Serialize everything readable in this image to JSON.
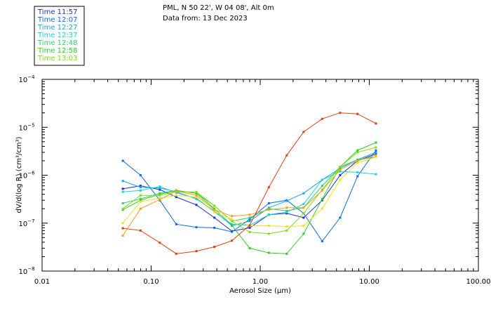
{
  "chart_data": {
    "type": "line",
    "title_lines": [
      "PML, N 50 22', W 04 08', Alt 0m",
      "Data from: 13 Dec 2023"
    ],
    "xlabel": "Aerosol Size (µm)",
    "ylabel": "dV/d(log R) (cm³/cm³)",
    "x_scale": "log",
    "y_scale": "log",
    "xlim": [
      0.01,
      100
    ],
    "ylim": [
      1e-08,
      0.0001
    ],
    "x_ticks": [
      {
        "value": 0.01,
        "label": "0.01"
      },
      {
        "value": 0.1,
        "label": "0.10"
      },
      {
        "value": 1,
        "label": "1.00"
      },
      {
        "value": 10,
        "label": "10.00"
      },
      {
        "value": 100,
        "label": "100.00"
      }
    ],
    "y_ticks": [
      {
        "value": 1e-08,
        "base": "10",
        "exp": "−8"
      },
      {
        "value": 1e-07,
        "base": "10",
        "exp": "−7"
      },
      {
        "value": 1e-06,
        "base": "10",
        "exp": "−6"
      },
      {
        "value": 1e-05,
        "base": "10",
        "exp": "−5"
      },
      {
        "value": 0.0001,
        "base": "10",
        "exp": "−4"
      }
    ],
    "x": [
      0.055,
      0.08,
      0.12,
      0.17,
      0.26,
      0.38,
      0.55,
      0.8,
      1.2,
      1.75,
      2.5,
      3.7,
      5.4,
      7.8,
      11.5
    ],
    "series": [
      {
        "name": "Time 11:57",
        "color": "#1a2fcf",
        "values": [
          5.2e-07,
          6e-07,
          5e-07,
          3.5e-07,
          2.4e-07,
          1.3e-07,
          6.8e-08,
          8e-08,
          1.5e-07,
          1.6e-07,
          1.3e-07,
          3e-07,
          1e-06,
          2e-06,
          2.8e-06
        ]
      },
      {
        "name": "Time 12:07",
        "color": "#0a6ae0",
        "values": [
          2e-06,
          1e-06,
          3e-07,
          9.5e-08,
          8.2e-08,
          8e-08,
          6.6e-08,
          1.2e-07,
          2.6e-07,
          3e-07,
          1.6e-07,
          4.2e-08,
          1.3e-07,
          9.5e-07,
          3.3e-06
        ]
      },
      {
        "name": "Time 12:27",
        "color": "#10a8e8",
        "values": [
          7.6e-07,
          5.6e-07,
          5.4e-07,
          4.5e-07,
          3.2e-07,
          1.8e-07,
          8.8e-08,
          1.1e-07,
          2.1e-07,
          2.9e-07,
          4.2e-07,
          8e-07,
          1.4e-06,
          2.1e-06,
          3e-06
        ]
      },
      {
        "name": "Time 12:37",
        "color": "#15d4d4",
        "values": [
          4.5e-07,
          4.8e-07,
          5.8e-07,
          4.3e-07,
          3.3e-07,
          1.7e-07,
          9.5e-08,
          9e-08,
          1.5e-07,
          1.7e-07,
          2.5e-07,
          8e-07,
          1.2e-06,
          1.15e-06,
          1.05e-06
        ]
      },
      {
        "name": "Time 12:48",
        "color": "#30cc70",
        "values": [
          2.6e-07,
          3.2e-07,
          4.2e-07,
          4.8e-07,
          4.2e-07,
          2.3e-07,
          1.1e-07,
          1.3e-07,
          2e-07,
          1.8e-07,
          2.1e-07,
          6e-07,
          1.5e-06,
          2.1e-06,
          2.4e-06
        ]
      },
      {
        "name": "Time 12:58",
        "color": "#2ad020",
        "values": [
          1.9e-07,
          3e-07,
          4e-07,
          4.8e-07,
          4.2e-07,
          2e-07,
          9e-08,
          3e-08,
          2.4e-08,
          2.3e-08,
          6e-08,
          3.2e-07,
          1.5e-06,
          3.3e-06,
          4.8e-06
        ]
      },
      {
        "name": "Time 13:03",
        "color": "#7ae010",
        "values": [
          2e-07,
          3.8e-07,
          3.8e-07,
          4.5e-07,
          4.5e-07,
          2.3e-07,
          1.1e-07,
          6.5e-08,
          6e-08,
          7e-08,
          1.6e-07,
          5e-07,
          1.5e-06,
          3e-06,
          3.8e-06
        ]
      },
      {
        "name": "",
        "color": "#f0e020",
        "values": [
          1e-07,
          2.8e-07,
          3.3e-07,
          3.8e-07,
          3.5e-07,
          1.7e-07,
          1.2e-07,
          8.8e-08,
          8.8e-08,
          8.5e-08,
          8.8e-08,
          2e-07,
          8e-07,
          1.8e-06,
          2.4e-06
        ]
      },
      {
        "name": "",
        "color": "#f0a010",
        "values": [
          5.5e-08,
          2e-07,
          3.1e-07,
          4.7e-07,
          3.8e-07,
          1.9e-07,
          1.4e-07,
          1.5e-07,
          1.9e-07,
          2.1e-07,
          2.1e-07,
          4.8e-07,
          1.3e-06,
          2e-06,
          2.6e-06
        ]
      },
      {
        "name": "",
        "color": "#e04010",
        "values": [
          7.8e-08,
          7e-08,
          3.9e-08,
          2.3e-08,
          2.6e-08,
          3.2e-08,
          4.3e-08,
          9e-08,
          5.6e-07,
          2.6e-06,
          8e-06,
          1.5e-05,
          2e-05,
          1.9e-05,
          1.2e-05
        ]
      }
    ]
  }
}
